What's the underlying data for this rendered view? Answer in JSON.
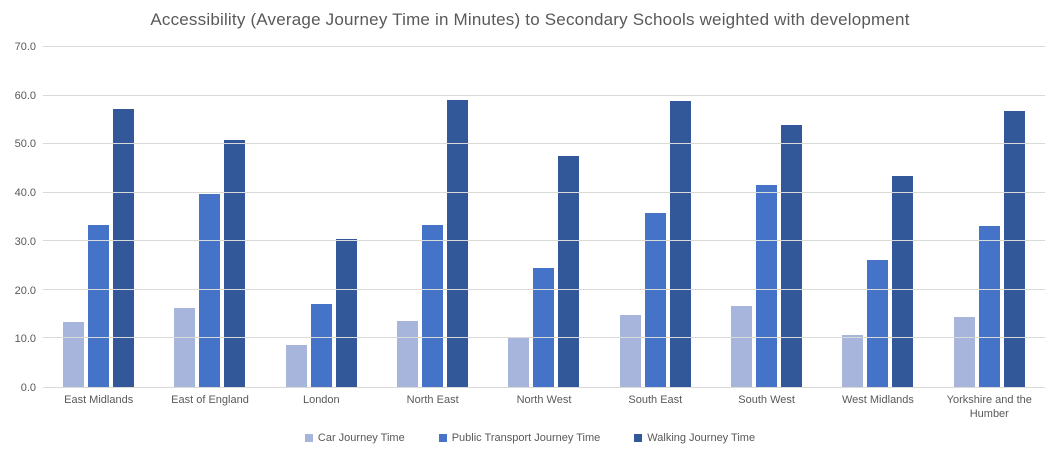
{
  "chart_data": {
    "type": "bar",
    "title": "Accessibility (Average Journey Time in Minutes) to Secondary Schools weighted with development",
    "categories": [
      "East Midlands",
      "East of England",
      "London",
      "North East",
      "North West",
      "South East",
      "South West",
      "West Midlands",
      "Yorkshire and the Humber"
    ],
    "series": [
      {
        "name": "Car Journey Time",
        "color": "#a7b4db",
        "values": [
          13.4,
          16.3,
          8.6,
          13.6,
          10.4,
          14.9,
          16.7,
          10.7,
          14.4
        ]
      },
      {
        "name": "Public Transport Journey Time",
        "color": "#4573c7",
        "values": [
          33.4,
          39.7,
          17.1,
          33.4,
          24.5,
          35.8,
          41.5,
          26.1,
          33.1
        ]
      },
      {
        "name": "Walking Journey Time",
        "color": "#33589a",
        "values": [
          57.3,
          50.8,
          30.5,
          59.1,
          47.5,
          58.9,
          54.0,
          43.4,
          56.9
        ]
      }
    ],
    "xlabel": "",
    "ylabel": "",
    "ylim": [
      0,
      70
    ],
    "ytick_step": 10,
    "ytick_labels": [
      "0.0",
      "10.0",
      "20.0",
      "30.0",
      "40.0",
      "50.0",
      "60.0",
      "70.0"
    ],
    "grid": true,
    "legend_position": "bottom",
    "colors": {
      "title_text": "#595959",
      "axis_text": "#595959",
      "gridline": "#d9d9d9",
      "background": "#ffffff"
    }
  }
}
